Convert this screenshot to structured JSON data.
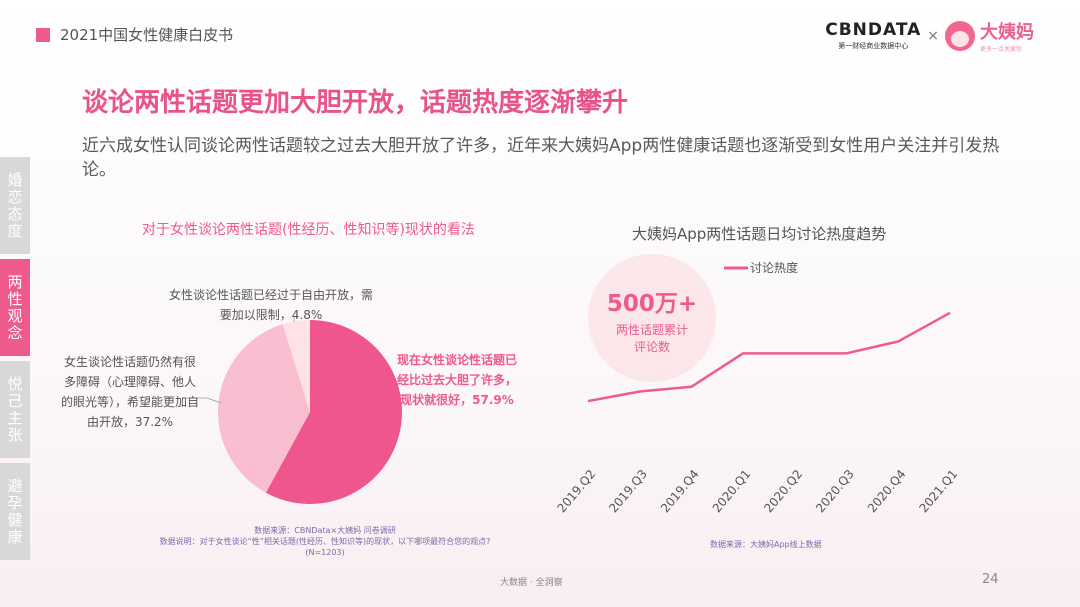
{
  "header": {
    "report_title": "2021中国女性健康白皮书"
  },
  "logos": {
    "cbndata": "CBNDATA",
    "cbndata_sub": "第一财经商业数据中心",
    "times": "×",
    "dayima": "大姨妈",
    "dayima_sub": "更多一点关爱你"
  },
  "title": "谈论两性话题更加大胆开放，话题热度逐渐攀升",
  "lead": "近六成女性认同谈论两性话题较之过去大胆开放了许多，近年来大姨妈App两性健康话题也逐渐受到女性用户关注并引发热论。",
  "side_tabs": [
    {
      "label": "婚恋态度",
      "active": false
    },
    {
      "label": "两性观念",
      "active": true
    },
    {
      "label": "悦己主张",
      "active": false
    },
    {
      "label": "避孕健康",
      "active": false
    }
  ],
  "left_chart_title": "对于女性谈论两性话题(性经历、性知识等)现状的看法",
  "right_chart_title": "大姨妈App两性话题日均讨论热度趋势",
  "pie_labels": {
    "top": "女性谈论性话题已经过于自由开放，需要加以限制，4.8%",
    "left": "女生谈论性话题仍然有很多障碍（心理障碍、他人的眼光等），希望能更加自由开放，37.2%",
    "right": "现在女性谈论性话题已经比过去大胆了许多，现状就很好，57.9%"
  },
  "stat_bubble": {
    "value": "500万+",
    "label": "两性话题累计评论数"
  },
  "sources": {
    "left_line1": "数据来源：CBNData×大姨妈 问卷调研",
    "left_line2": "数据说明：对于女性谈论“性”相关话题(性经历、性知识等)的现状，以下哪项最符合您的观点?",
    "left_line3": "(N=1203)",
    "right": "数据来源：大姨妈App线上数据"
  },
  "footer": {
    "center": "大数据 · 全洞察",
    "page": "24"
  },
  "colors": {
    "accent": "#ef5a8e",
    "pie_dark": "#f0568e",
    "pie_mid": "#f9bfd0",
    "pie_light": "#fde3e6",
    "tab_inactive": "#d8d8d8"
  },
  "chart_data": [
    {
      "type": "pie",
      "title": "对于女性谈论两性话题(性经历、性知识等)现状的看法",
      "slices": [
        {
          "label": "现在女性谈论性话题已经比过去大胆了许多，现状就很好",
          "value": 57.9
        },
        {
          "label": "女生谈论性话题仍然有很多障碍（心理障碍、他人的眼光等），希望能更加自由开放",
          "value": 37.2
        },
        {
          "label": "女性谈论性话题已经过于自由开放，需要加以限制",
          "value": 4.8
        }
      ]
    },
    {
      "type": "line",
      "title": "大姨妈App两性话题日均讨论热度趋势",
      "categories": [
        "2019.Q2",
        "2019.Q3",
        "2019.Q4",
        "2020.Q1",
        "2020.Q2",
        "2020.Q3",
        "2020.Q4",
        "2021.Q1"
      ],
      "series": [
        {
          "name": "讨论热度",
          "values": [
            18,
            22,
            24,
            38,
            38,
            38,
            43,
            55
          ]
        }
      ],
      "ylim": [
        0,
        70
      ],
      "grid": false,
      "legend": "top-center"
    }
  ]
}
